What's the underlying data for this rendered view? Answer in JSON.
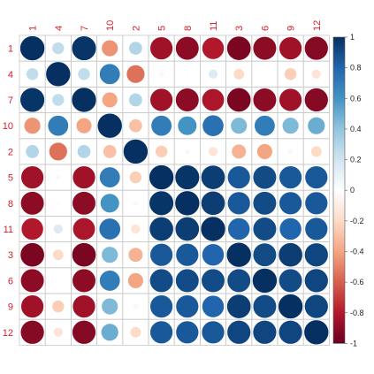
{
  "chart_data": {
    "type": "heatmap",
    "style": "corrplot-circle",
    "title": "",
    "labels": [
      "1",
      "4",
      "7",
      "10",
      "2",
      "5",
      "8",
      "11",
      "3",
      "6",
      "9",
      "12"
    ],
    "matrix": [
      [
        1.0,
        0.25,
        0.98,
        -0.45,
        0.3,
        -0.85,
        -0.9,
        -0.8,
        -0.95,
        -0.9,
        -0.85,
        -0.92
      ],
      [
        0.25,
        1.0,
        0.25,
        0.7,
        -0.55,
        0.05,
        -0.02,
        0.15,
        -0.2,
        0.0,
        -0.25,
        -0.15
      ],
      [
        0.98,
        0.25,
        1.0,
        -0.4,
        0.3,
        -0.85,
        -0.9,
        -0.82,
        -0.95,
        -0.9,
        -0.85,
        -0.92
      ],
      [
        -0.45,
        0.7,
        -0.4,
        1.0,
        -0.3,
        0.7,
        0.6,
        0.75,
        0.45,
        0.7,
        0.45,
        0.5
      ],
      [
        0.3,
        -0.55,
        0.3,
        -0.3,
        1.0,
        -0.25,
        -0.05,
        -0.15,
        -0.35,
        -0.4,
        -0.05,
        -0.2
      ],
      [
        -0.85,
        0.05,
        -0.85,
        0.7,
        -0.25,
        1.0,
        0.98,
        0.95,
        0.85,
        0.9,
        0.85,
        0.85
      ],
      [
        -0.9,
        -0.02,
        -0.9,
        0.6,
        -0.05,
        0.98,
        1.0,
        0.95,
        0.85,
        0.9,
        0.85,
        0.85
      ],
      [
        -0.8,
        0.15,
        -0.82,
        0.75,
        -0.15,
        0.95,
        0.95,
        1.0,
        0.8,
        0.9,
        0.8,
        0.85
      ],
      [
        -0.95,
        -0.2,
        -0.95,
        0.45,
        -0.35,
        0.85,
        0.85,
        0.8,
        1.0,
        0.9,
        0.95,
        0.92
      ],
      [
        -0.9,
        0.0,
        -0.9,
        0.7,
        -0.4,
        0.9,
        0.9,
        0.9,
        0.9,
        1.0,
        0.9,
        0.92
      ],
      [
        -0.85,
        -0.25,
        -0.85,
        0.45,
        -0.05,
        0.85,
        0.85,
        0.8,
        0.95,
        0.9,
        1.0,
        0.92
      ],
      [
        -0.92,
        -0.15,
        -0.92,
        0.5,
        -0.2,
        0.85,
        0.85,
        0.85,
        0.92,
        0.92,
        0.92,
        1.0
      ]
    ],
    "color_range": [
      -1,
      1
    ],
    "colorbar_ticks": [
      "1",
      "0.8",
      "0.6",
      "0.4",
      "0.2",
      "0",
      "-0.2",
      "-0.4",
      "-0.6",
      "-0.8",
      "-1"
    ],
    "colorbar_tick_values": [
      1,
      0.8,
      0.6,
      0.4,
      0.2,
      0,
      -0.2,
      -0.4,
      -0.6,
      -0.8,
      -1
    ],
    "color_scale": [
      "#67001f",
      "#b2182b",
      "#d6604d",
      "#f4a582",
      "#fddbc7",
      "#ffffff",
      "#d1e5f0",
      "#92c5de",
      "#4393c3",
      "#2166ac",
      "#053061"
    ],
    "label_color": "#d21f2a",
    "grid": true,
    "legend": "right"
  }
}
